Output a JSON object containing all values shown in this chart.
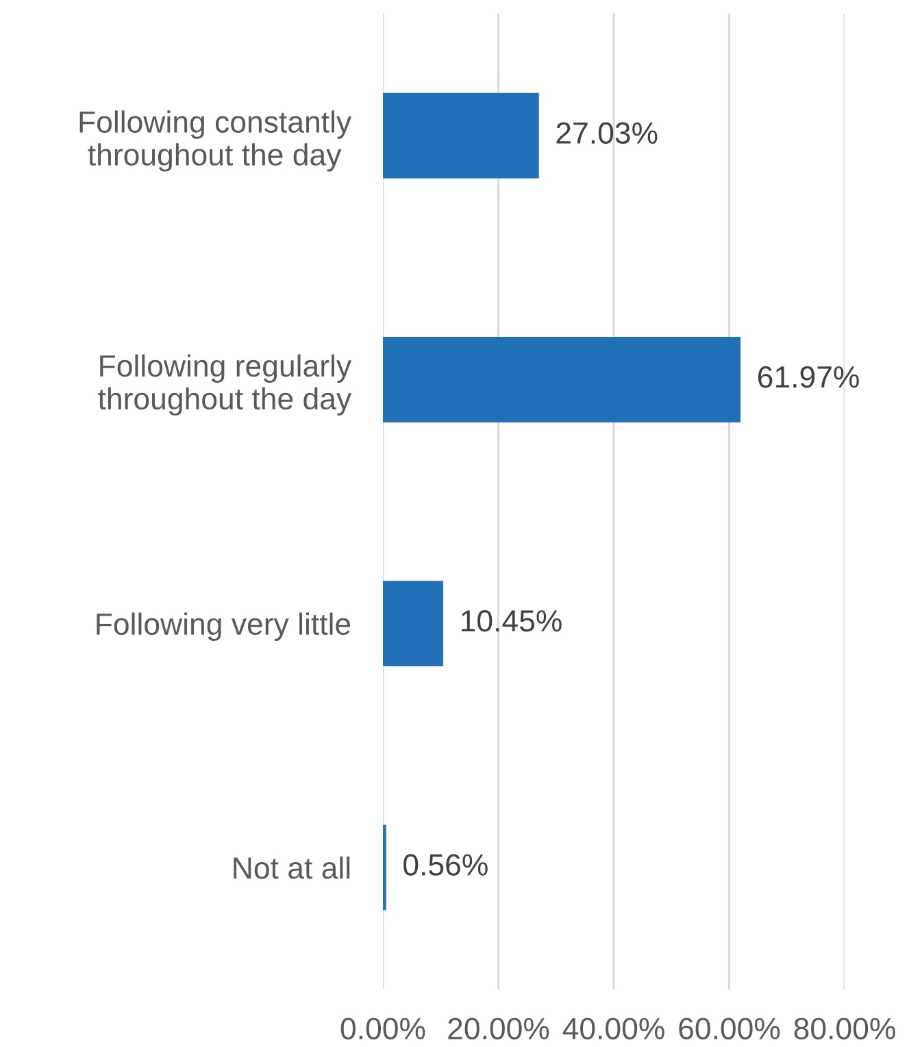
{
  "chart_data": {
    "type": "bar",
    "orientation": "horizontal",
    "categories": [
      "Following constantly\nthroughout the day",
      "Following regularly\nthroughout the day",
      "Following very little",
      "Not at all"
    ],
    "values": [
      27.03,
      61.97,
      10.45,
      0.56
    ],
    "color": "#2271b8",
    "value_labels": [
      "27.03%",
      "61.97%",
      "10.45%",
      "0.56%"
    ],
    "xlim": [
      0,
      80
    ],
    "xticks": [
      {
        "value": 0,
        "label": "0.00%"
      },
      {
        "value": 20,
        "label": "20.00%"
      },
      {
        "value": 40,
        "label": "40.00%"
      },
      {
        "value": 60,
        "label": "60.00%"
      },
      {
        "value": 80,
        "label": "80.00%"
      }
    ],
    "grid": "x"
  }
}
